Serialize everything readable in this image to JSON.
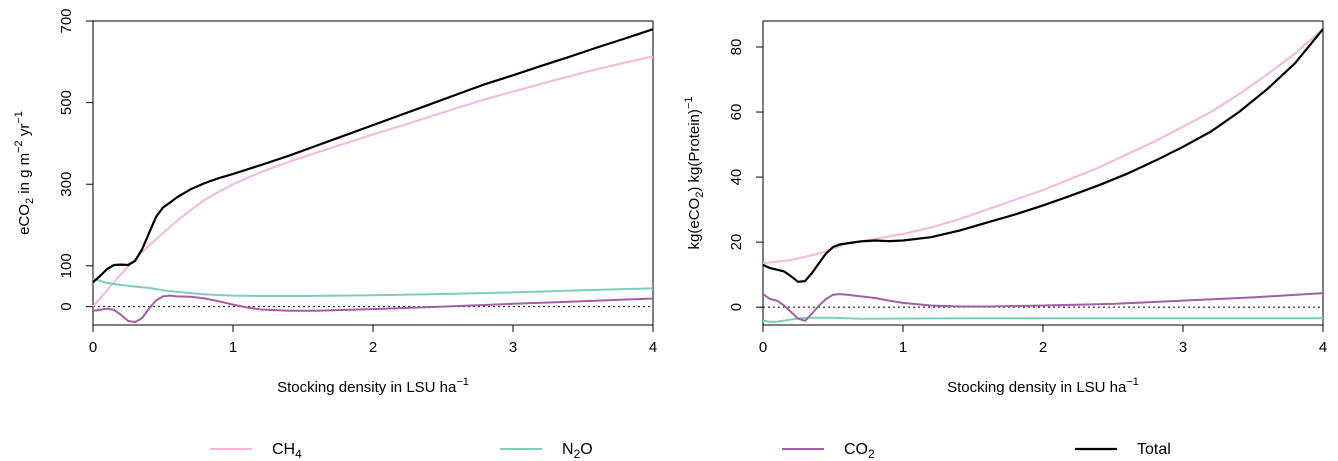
{
  "chart_data": [
    {
      "type": "line",
      "xlabel": "Stocking density in LSU ha",
      "xlabel_sup": "−1",
      "ylabel_parts": [
        {
          "t": "eCO",
          "s": "n"
        },
        {
          "t": "2",
          "s": "sub"
        },
        {
          "t": " in g m",
          "s": "n"
        },
        {
          "t": "−2",
          "s": "sup"
        },
        {
          "t": " yr",
          "s": "n"
        },
        {
          "t": "−1",
          "s": "sup"
        }
      ],
      "xlim": [
        0,
        4
      ],
      "ylim": [
        -45,
        700
      ],
      "xticks": [
        0,
        1,
        2,
        3,
        4
      ],
      "yticks": [
        0,
        100,
        300,
        500,
        700
      ],
      "zero_line": "dotted",
      "series": [
        {
          "key": "ch4",
          "x": [
            0,
            0.1,
            0.2,
            0.3,
            0.4,
            0.5,
            0.6,
            0.7,
            0.8,
            0.9,
            1.0,
            1.2,
            1.4,
            1.6,
            1.8,
            2.0,
            2.2,
            2.4,
            2.6,
            2.8,
            3.0,
            3.2,
            3.4,
            3.6,
            3.8,
            4.0
          ],
          "values": [
            0,
            40,
            80,
            115,
            150,
            180,
            210,
            237,
            262,
            282,
            300,
            330,
            355,
            378,
            400,
            422,
            443,
            465,
            487,
            508,
            527,
            546,
            564,
            582,
            598,
            613
          ]
        },
        {
          "key": "n2o",
          "x": [
            0,
            0.1,
            0.2,
            0.3,
            0.4,
            0.5,
            0.6,
            0.8,
            1.0,
            1.2,
            1.5,
            2.0,
            2.5,
            3.0,
            3.5,
            4.0
          ],
          "values": [
            68,
            58,
            53,
            49,
            46,
            40,
            36,
            30,
            27,
            26,
            26,
            28,
            31,
            35,
            40,
            45
          ]
        },
        {
          "key": "co2",
          "x": [
            0,
            0.1,
            0.15,
            0.2,
            0.25,
            0.3,
            0.35,
            0.4,
            0.45,
            0.5,
            0.55,
            0.6,
            0.7,
            0.8,
            0.9,
            1.0,
            1.1,
            1.2,
            1.4,
            1.6,
            1.8,
            2.0,
            2.5,
            3.0,
            3.5,
            4.0
          ],
          "values": [
            -10,
            -5,
            -8,
            -20,
            -35,
            -38,
            -28,
            -5,
            15,
            25,
            27,
            25,
            24,
            20,
            13,
            5,
            -2,
            -7,
            -10,
            -10,
            -8,
            -6,
            0,
            7,
            13,
            20
          ]
        },
        {
          "key": "total",
          "x": [
            0,
            0.05,
            0.1,
            0.15,
            0.2,
            0.25,
            0.3,
            0.35,
            0.4,
            0.45,
            0.5,
            0.55,
            0.6,
            0.7,
            0.8,
            0.9,
            1.0,
            1.2,
            1.4,
            1.6,
            1.8,
            2.0,
            2.2,
            2.4,
            2.6,
            2.8,
            3.0,
            3.2,
            3.4,
            3.6,
            3.8,
            4.0
          ],
          "values": [
            60,
            75,
            92,
            102,
            103,
            102,
            112,
            140,
            180,
            220,
            243,
            255,
            268,
            288,
            303,
            315,
            325,
            347,
            370,
            395,
            420,
            445,
            470,
            495,
            520,
            545,
            567,
            590,
            612,
            635,
            657,
            680
          ]
        }
      ]
    },
    {
      "type": "line",
      "xlabel": "Stocking density in LSU ha",
      "xlabel_sup": "−1",
      "ylabel_parts": [
        {
          "t": "kg(eCO",
          "s": "n"
        },
        {
          "t": "2",
          "s": "sub"
        },
        {
          "t": ") kg(Protein)",
          "s": "n"
        },
        {
          "t": "−1",
          "s": "sup"
        }
      ],
      "xlim": [
        0,
        4
      ],
      "ylim": [
        -5.5,
        88
      ],
      "xticks": [
        0,
        1,
        2,
        3,
        4
      ],
      "yticks": [
        0,
        20,
        40,
        60,
        80
      ],
      "zero_line": "dotted",
      "series": [
        {
          "key": "ch4",
          "x": [
            0,
            0.2,
            0.4,
            0.6,
            0.8,
            1.0,
            1.2,
            1.4,
            1.6,
            1.8,
            2.0,
            2.2,
            2.4,
            2.6,
            2.8,
            3.0,
            3.2,
            3.4,
            3.6,
            3.8,
            4.0
          ],
          "values": [
            13.5,
            14.5,
            16.5,
            19.5,
            21,
            22.5,
            24.5,
            27,
            30,
            33,
            36,
            39.5,
            43,
            47,
            51,
            55.5,
            60,
            65.5,
            71.5,
            78,
            85.5
          ]
        },
        {
          "key": "n2o",
          "x": [
            0,
            0.05,
            0.1,
            0.2,
            0.3,
            0.4,
            0.5,
            0.7,
            1.0,
            1.5,
            2.0,
            3.0,
            4.0
          ],
          "values": [
            -4.2,
            -4.5,
            -4.5,
            -3.8,
            -3.3,
            -3.3,
            -3.3,
            -3.6,
            -3.5,
            -3.4,
            -3.4,
            -3.4,
            -3.4
          ]
        },
        {
          "key": "co2",
          "x": [
            0,
            0.05,
            0.1,
            0.15,
            0.2,
            0.25,
            0.3,
            0.35,
            0.4,
            0.45,
            0.5,
            0.55,
            0.6,
            0.7,
            0.8,
            0.9,
            1.0,
            1.2,
            1.4,
            1.6,
            2.0,
            2.5,
            3.0,
            3.5,
            4.0
          ],
          "values": [
            4,
            2.5,
            2,
            0.5,
            -1.5,
            -3.5,
            -4.2,
            -2,
            0.5,
            2.5,
            3.8,
            4,
            3.8,
            3.3,
            2.8,
            2,
            1.3,
            0.5,
            0.2,
            0.2,
            0.5,
            1,
            2,
            3,
            4.3
          ]
        },
        {
          "key": "total",
          "x": [
            0,
            0.05,
            0.1,
            0.15,
            0.2,
            0.25,
            0.3,
            0.35,
            0.4,
            0.45,
            0.5,
            0.55,
            0.6,
            0.7,
            0.8,
            0.9,
            1.0,
            1.2,
            1.4,
            1.6,
            1.8,
            2.0,
            2.2,
            2.4,
            2.6,
            2.8,
            3.0,
            3.2,
            3.4,
            3.6,
            3.8,
            4.0
          ],
          "values": [
            13,
            12,
            11.5,
            11,
            9.5,
            7.8,
            8,
            10.5,
            13.5,
            16.5,
            18.5,
            19.3,
            19.6,
            20.2,
            20.5,
            20.3,
            20.5,
            21.5,
            23.5,
            26,
            28.5,
            31.3,
            34.3,
            37.5,
            41,
            45,
            49.3,
            54,
            60,
            67,
            75,
            85.5
          ]
        }
      ]
    }
  ],
  "legend": [
    {
      "key": "ch4",
      "base": "CH",
      "sub": "4",
      "tail": "",
      "color": "#f7b6d9"
    },
    {
      "key": "n2o",
      "base": "N",
      "sub": "2",
      "tail": "O",
      "color": "#7fcdbb"
    },
    {
      "key": "co2",
      "base": "CO",
      "sub": "2",
      "tail": "",
      "color": "#a35ea6"
    },
    {
      "key": "total",
      "base": "Total",
      "sub": "",
      "tail": "",
      "color": "#000000"
    }
  ]
}
